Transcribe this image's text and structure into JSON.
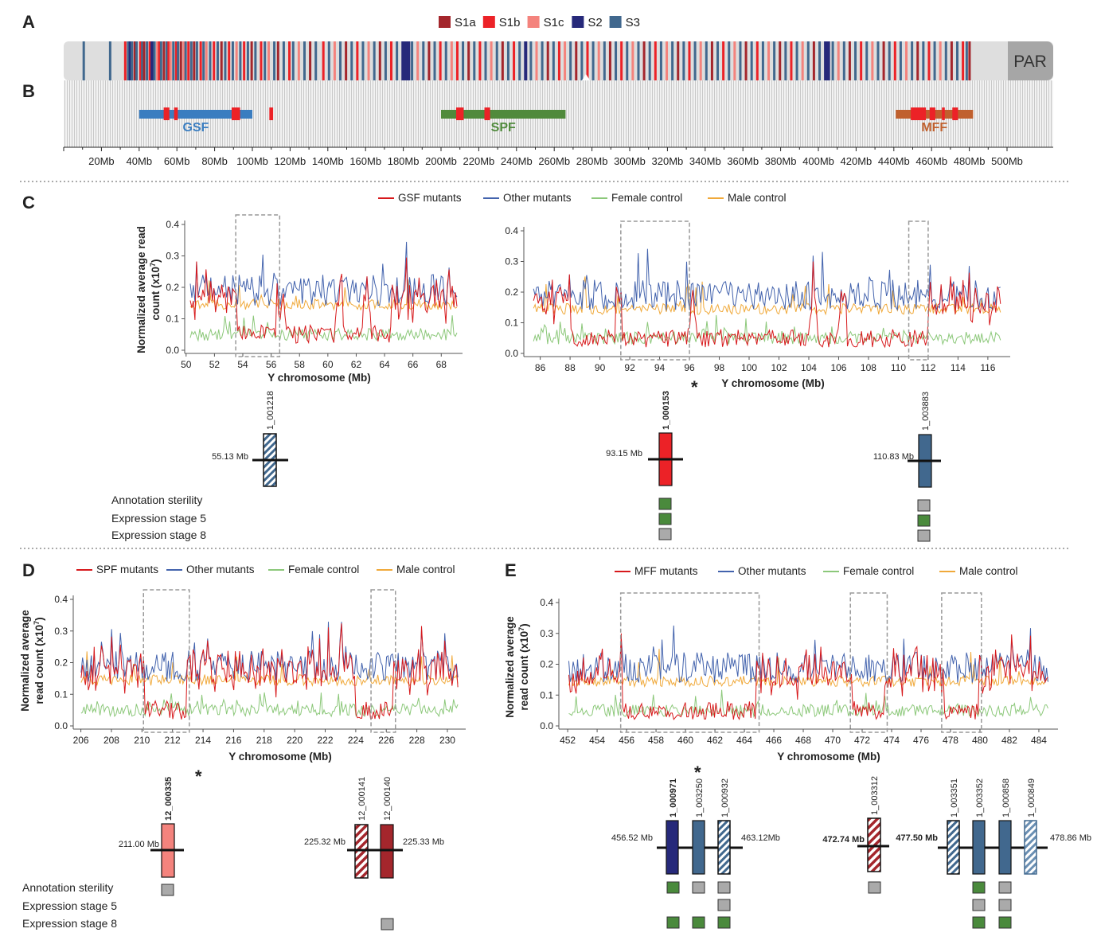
{
  "panel_labels": {
    "A": "A",
    "B": "B",
    "C": "C",
    "D": "D",
    "E": "E"
  },
  "colors": {
    "S1a": "#a4262c",
    "S1b": "#ec2227",
    "S1c": "#f4837d",
    "S2": "#26297a",
    "S3": "#41688e",
    "gsf": "#3a7dc0",
    "spf": "#508a3c",
    "mff": "#c0602e",
    "mutants": "#d7191c",
    "other": "#4363ad",
    "female": "#8cc87a",
    "male": "#f0a93a",
    "annot_green": "#4a8a3c",
    "annot_gray": "#aaaaaa"
  },
  "top": {
    "legend": [
      {
        "key": "S1a",
        "label": "S1a"
      },
      {
        "key": "S1b",
        "label": "S1b"
      },
      {
        "key": "S1c",
        "label": "S1c"
      },
      {
        "key": "S2",
        "label": "S2"
      },
      {
        "key": "S3",
        "label": "S3"
      }
    ],
    "par_label": "PAR",
    "regions": [
      {
        "name": "GSF",
        "start": 40,
        "end": 100,
        "color": "gsf"
      },
      {
        "name": "SPF",
        "start": 200,
        "end": 266,
        "color": "spf"
      },
      {
        "name": "MFF",
        "start": 441,
        "end": 482,
        "color": "mff"
      }
    ],
    "region_hits": [
      [
        53,
        56
      ],
      [
        58.5,
        60.5
      ],
      [
        89,
        93.5
      ],
      [
        109,
        111
      ],
      [
        208,
        212
      ],
      [
        223,
        226
      ],
      [
        449,
        457
      ],
      [
        459,
        462
      ],
      [
        465.5,
        467
      ],
      [
        471,
        474
      ]
    ],
    "axis_ticks": [
      "20Mb",
      "40Mb",
      "60Mb",
      "80Mb",
      "100Mb",
      "120Mb",
      "140Mb",
      "160Mb",
      "180Mb",
      "200Mb",
      "220Mb",
      "240Mb",
      "260Mb",
      "280Mb",
      "300Mb",
      "320Mb",
      "340Mb",
      "360Mb",
      "380Mb",
      "400Mb",
      "420Mb",
      "440Mb",
      "460Mb",
      "480Mb",
      "500Mb"
    ],
    "bands": [
      [
        10,
        "S3"
      ],
      [
        24,
        "S3"
      ],
      [
        32,
        "S1b"
      ],
      [
        33.5,
        "S3"
      ],
      [
        34.5,
        "S2"
      ],
      [
        35.5,
        "S3"
      ],
      [
        37,
        "S1a"
      ],
      [
        38,
        "S3"
      ],
      [
        40,
        "S1b"
      ],
      [
        41,
        "S3"
      ],
      [
        42,
        "S1a"
      ],
      [
        43.5,
        "S3"
      ],
      [
        45,
        "S1b"
      ],
      [
        46,
        "S2"
      ],
      [
        47.5,
        "S3"
      ],
      [
        49,
        "S1c"
      ],
      [
        50,
        "S1b"
      ],
      [
        51,
        "S3"
      ],
      [
        52.5,
        "S1a"
      ],
      [
        54,
        "S3"
      ],
      [
        55,
        "S1b"
      ],
      [
        56,
        "S1c"
      ],
      [
        57.5,
        "S3"
      ],
      [
        59,
        "S1b"
      ],
      [
        60,
        "S3"
      ],
      [
        61.5,
        "S1a"
      ],
      [
        63,
        "S1c"
      ],
      [
        64,
        "S3"
      ],
      [
        65.5,
        "S1b"
      ],
      [
        67,
        "S3"
      ],
      [
        68.5,
        "S1a"
      ],
      [
        70,
        "S3"
      ],
      [
        72,
        "S1b"
      ],
      [
        73.5,
        "S3"
      ],
      [
        75,
        "S1c"
      ],
      [
        77,
        "S3"
      ],
      [
        79,
        "S1b"
      ],
      [
        81,
        "S3"
      ],
      [
        83,
        "S1a"
      ],
      [
        85,
        "S3"
      ],
      [
        87,
        "S1b"
      ],
      [
        89,
        "S3"
      ],
      [
        91,
        "S1c"
      ],
      [
        93,
        "S3"
      ],
      [
        95,
        "S1b"
      ],
      [
        97,
        "S3"
      ],
      [
        99,
        "S1a"
      ],
      [
        101,
        "S3"
      ],
      [
        104,
        "S1b"
      ],
      [
        106,
        "S3"
      ],
      [
        108,
        "S1c"
      ],
      [
        111,
        "S3"
      ],
      [
        113,
        "S1a"
      ],
      [
        116,
        "S3"
      ],
      [
        119,
        "S1b"
      ],
      [
        121,
        "S3"
      ],
      [
        124,
        "S1c"
      ],
      [
        127,
        "S3"
      ],
      [
        130,
        "S1a"
      ],
      [
        133,
        "S3"
      ],
      [
        137,
        "S1b"
      ],
      [
        140,
        "S3"
      ],
      [
        143,
        "S1c"
      ],
      [
        146,
        "S3"
      ],
      [
        149,
        "S1a"
      ],
      [
        152,
        "S3"
      ],
      [
        155,
        "S1b"
      ],
      [
        158,
        "S3"
      ],
      [
        161,
        "S1c"
      ],
      [
        164,
        "S3"
      ],
      [
        167,
        "S1a"
      ],
      [
        170,
        "S3"
      ],
      [
        173,
        "S1b"
      ],
      [
        176,
        "S3"
      ],
      [
        179,
        "S2"
      ],
      [
        180.5,
        "S2"
      ],
      [
        182,
        "S2"
      ],
      [
        184,
        "S3"
      ],
      [
        187,
        "S1c"
      ],
      [
        190,
        "S3"
      ],
      [
        193,
        "S1a"
      ],
      [
        196,
        "S3"
      ],
      [
        199,
        "S1b"
      ],
      [
        202,
        "S3"
      ],
      [
        205,
        "S1c"
      ],
      [
        208,
        "S1b"
      ],
      [
        211,
        "S3"
      ],
      [
        214,
        "S1a"
      ],
      [
        217,
        "S3"
      ],
      [
        220,
        "S1b"
      ],
      [
        223,
        "S3"
      ],
      [
        226,
        "S1c"
      ],
      [
        229,
        "S3"
      ],
      [
        232,
        "S1a"
      ],
      [
        235,
        "S3"
      ],
      [
        238,
        "S1b"
      ],
      [
        241,
        "S3"
      ],
      [
        244,
        "S2"
      ],
      [
        247,
        "S3"
      ],
      [
        250,
        "S1c"
      ],
      [
        253,
        "S3"
      ],
      [
        256,
        "S1a"
      ],
      [
        259,
        "S3"
      ],
      [
        262,
        "S1b"
      ],
      [
        265,
        "S1c"
      ],
      [
        268,
        "S3"
      ],
      [
        271,
        "S1a"
      ],
      [
        274,
        "S3"
      ],
      [
        277,
        "S1b"
      ],
      [
        280,
        "S3"
      ],
      [
        283,
        "S1c"
      ],
      [
        286,
        "S3"
      ],
      [
        289,
        "S1a"
      ],
      [
        292,
        "S3"
      ],
      [
        295,
        "S1b"
      ],
      [
        298,
        "S3"
      ],
      [
        301,
        "S1c"
      ],
      [
        304,
        "S3"
      ],
      [
        307,
        "S1a"
      ],
      [
        310,
        "S3"
      ],
      [
        313,
        "S1b"
      ],
      [
        316,
        "S3"
      ],
      [
        319,
        "S1c"
      ],
      [
        322,
        "S3"
      ],
      [
        325,
        "S1a"
      ],
      [
        328,
        "S3"
      ],
      [
        331,
        "S1b"
      ],
      [
        334,
        "S3"
      ],
      [
        337,
        "S1c"
      ],
      [
        340,
        "S3"
      ],
      [
        343,
        "S1a"
      ],
      [
        346,
        "S3"
      ],
      [
        349,
        "S1b"
      ],
      [
        352,
        "S3"
      ],
      [
        355,
        "S1c"
      ],
      [
        358,
        "S3"
      ],
      [
        361,
        "S1a"
      ],
      [
        364,
        "S3"
      ],
      [
        367,
        "S1b"
      ],
      [
        370,
        "S3"
      ],
      [
        373,
        "S1c"
      ],
      [
        376,
        "S3"
      ],
      [
        379,
        "S1a"
      ],
      [
        382,
        "S3"
      ],
      [
        385,
        "S1b"
      ],
      [
        388,
        "S3"
      ],
      [
        391,
        "S1c"
      ],
      [
        394,
        "S3"
      ],
      [
        397,
        "S1a"
      ],
      [
        400,
        "S3"
      ],
      [
        403,
        "S2"
      ],
      [
        404.5,
        "S2"
      ],
      [
        407,
        "S3"
      ],
      [
        410,
        "S1c"
      ],
      [
        413,
        "S3"
      ],
      [
        416,
        "S1a"
      ],
      [
        419,
        "S3"
      ],
      [
        422,
        "S1b"
      ],
      [
        425,
        "S3"
      ],
      [
        428,
        "S1c"
      ],
      [
        431,
        "S3"
      ],
      [
        434,
        "S1a"
      ],
      [
        437,
        "S3"
      ],
      [
        440,
        "S1b"
      ],
      [
        443,
        "S3"
      ],
      [
        446,
        "S1c"
      ],
      [
        449,
        "S3"
      ],
      [
        452,
        "S1a"
      ],
      [
        455,
        "S3"
      ],
      [
        458,
        "S1b"
      ],
      [
        461,
        "S3"
      ],
      [
        464,
        "S1c"
      ],
      [
        467,
        "S3"
      ],
      [
        470,
        "S1a"
      ],
      [
        473,
        "S3"
      ],
      [
        476,
        "S1b"
      ],
      [
        478,
        "S3"
      ],
      [
        479.5,
        "S1a"
      ]
    ]
  },
  "panelC": {
    "legend": [
      {
        "key": "mutants",
        "label": "GSF mutants"
      },
      {
        "key": "other",
        "label": "Other mutants"
      },
      {
        "key": "female",
        "label": "Female control"
      },
      {
        "key": "male",
        "label": "Male control"
      }
    ],
    "ylabel_line1": "Normalized average read",
    "ylabel_line2": "count (x10",
    "ylabel_sup": "7",
    "ylabel_close": ")",
    "xlabel": "Y chromosome (Mb)",
    "left_xticks": [
      "50",
      "52",
      "54",
      "56",
      "58",
      "60",
      "62",
      "64",
      "66",
      "68"
    ],
    "right_xticks": [
      "86",
      "88",
      "90",
      "92",
      "94",
      "96",
      "98",
      "100",
      "102",
      "104",
      "106",
      "108",
      "110",
      "112",
      "114",
      "116"
    ],
    "yticks": [
      "0.0",
      "0.1",
      "0.2",
      "0.3",
      "0.4"
    ],
    "genes": [
      {
        "id": "1_001218",
        "pos": "55.13 Mb",
        "bold": false,
        "star": false
      },
      {
        "id": "1_000153",
        "pos": "93.15 Mb",
        "bold": true,
        "star": true
      },
      {
        "id": "1_003883",
        "pos": "110.83 Mb",
        "bold": false,
        "star": false
      }
    ],
    "rows": [
      "Annotation sterility",
      "Expression stage 5",
      "Expression stage 8"
    ]
  },
  "panelD": {
    "legend": [
      {
        "key": "mutants",
        "label": "SPF mutants"
      },
      {
        "key": "other",
        "label": "Other mutants"
      },
      {
        "key": "female",
        "label": "Female control"
      },
      {
        "key": "male",
        "label": "Male control"
      }
    ],
    "ylabel_line1": "Normalized average",
    "ylabel_line2": "read count (x10",
    "ylabel_sup": "7",
    "ylabel_close": ")",
    "xlabel": "Y chromosome (Mb)",
    "xticks": [
      "206",
      "208",
      "210",
      "212",
      "214",
      "216",
      "218",
      "220",
      "222",
      "224",
      "226",
      "228",
      "230"
    ],
    "yticks": [
      "0.0",
      "0.1",
      "0.2",
      "0.3",
      "0.4"
    ],
    "genes": [
      {
        "id": "12_000335",
        "pos": "211.00 Mb",
        "bold": true,
        "star": true
      },
      {
        "id": "12_000141",
        "pos": "225.32 Mb",
        "bold": false,
        "star": false
      },
      {
        "id": "12_000140",
        "pos": "225.33 Mb",
        "bold": false,
        "star": false
      }
    ],
    "rows": [
      "Annotation sterility",
      "Expression stage 5",
      "Expression stage 8"
    ]
  },
  "panelE": {
    "legend": [
      {
        "key": "mutants",
        "label": "MFF mutants"
      },
      {
        "key": "other",
        "label": "Other mutants"
      },
      {
        "key": "female",
        "label": "Female control"
      },
      {
        "key": "male",
        "label": "Male control"
      }
    ],
    "ylabel_line1": "Normalized average",
    "ylabel_line2": "read count (x10",
    "ylabel_sup": "7",
    "ylabel_close": ")",
    "xlabel": "Y chromosome (Mb)",
    "xticks": [
      "452",
      "454",
      "456",
      "458",
      "460",
      "462",
      "464",
      "466",
      "468",
      "470",
      "472",
      "474",
      "476",
      "478",
      "480",
      "482",
      "484"
    ],
    "yticks": [
      "0.0",
      "0.1",
      "0.2",
      "0.3",
      "0.4"
    ],
    "genes": [
      {
        "id": "1_000971",
        "pos": "456.52 Mb",
        "bold": true,
        "star": true
      },
      {
        "id": "1_003250",
        "pos": "",
        "bold": false,
        "star": false
      },
      {
        "id": "1_000932",
        "pos": "463.12Mb",
        "bold": false,
        "star": false
      },
      {
        "id": "1_003312",
        "pos": "472.74 Mb",
        "bold": false,
        "star": false
      },
      {
        "id": "1_003351",
        "pos": "477.50 Mb",
        "bold": false,
        "star": false
      },
      {
        "id": "1_003352",
        "pos": "",
        "bold": false,
        "star": false
      },
      {
        "id": "1_000858",
        "pos": "",
        "bold": false,
        "star": false
      },
      {
        "id": "1_000849",
        "pos": "478.86 Mb",
        "bold": false,
        "star": false
      }
    ]
  },
  "asterisk": "*"
}
